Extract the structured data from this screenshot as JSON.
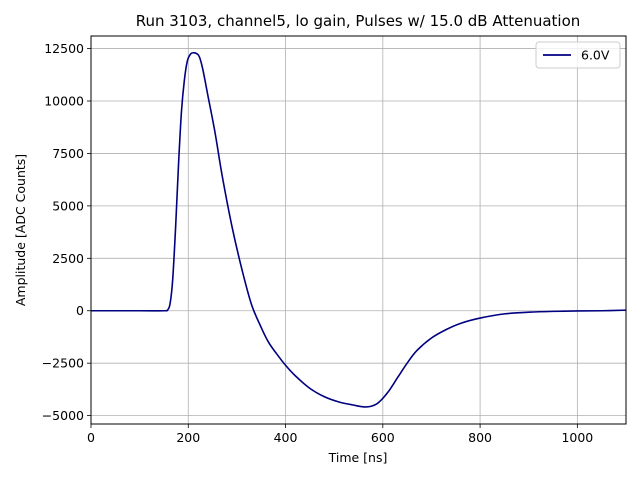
{
  "chart_data": {
    "type": "line",
    "title": "Run 3103, channel5, lo gain, Pulses w/ 15.0 dB Attenuation",
    "xlabel": "Time [ns]",
    "ylabel": "Amplitude [ADC Counts]",
    "xlim": [
      0,
      1100
    ],
    "ylim": [
      -5400,
      13100
    ],
    "xticks": [
      0,
      200,
      400,
      600,
      800,
      1000
    ],
    "xtick_labels": [
      "0",
      "200",
      "400",
      "600",
      "800",
      "1000"
    ],
    "yticks": [
      -5000,
      -2500,
      0,
      2500,
      5000,
      7500,
      10000,
      12500
    ],
    "ytick_labels": [
      "−5000",
      "−2500",
      "0",
      "2500",
      "5000",
      "7500",
      "10000",
      "12500"
    ],
    "grid": true,
    "legend": "top-right",
    "colors": {
      "series": "#000080",
      "grid": "#b0b0b0"
    },
    "series": [
      {
        "name": "6.0V",
        "x": [
          0,
          100,
          150,
          158,
          163,
          168,
          174,
          180,
          186,
          192,
          198,
          205,
          212,
          218,
          223,
          230,
          240,
          255,
          270,
          290,
          310,
          330,
          350,
          365,
          380,
          400,
          420,
          450,
          480,
          510,
          540,
          560,
          575,
          590,
          610,
          630,
          650,
          670,
          700,
          730,
          760,
          800,
          850,
          900,
          950,
          1000,
          1050,
          1100
        ],
        "y": [
          0,
          0,
          0,
          50,
          400,
          1500,
          4000,
          7000,
          9500,
          11000,
          11900,
          12250,
          12300,
          12250,
          12100,
          11500,
          10300,
          8500,
          6400,
          4000,
          2000,
          300,
          -800,
          -1500,
          -2000,
          -2600,
          -3100,
          -3700,
          -4100,
          -4350,
          -4500,
          -4580,
          -4560,
          -4400,
          -3900,
          -3200,
          -2500,
          -1900,
          -1300,
          -900,
          -600,
          -350,
          -150,
          -70,
          -30,
          -10,
          0,
          30
        ]
      }
    ]
  }
}
